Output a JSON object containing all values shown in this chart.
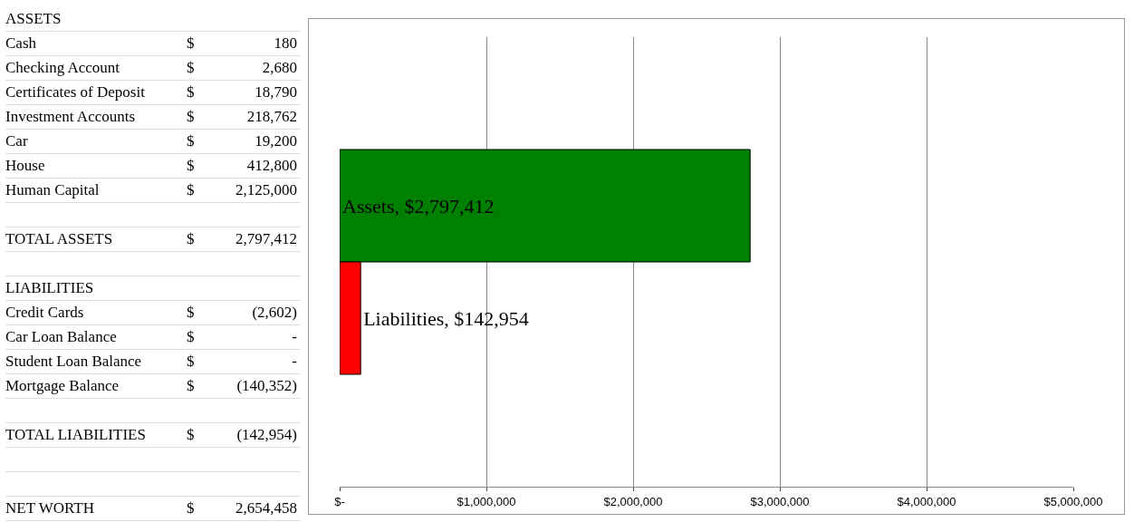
{
  "chart_data": [
    {
      "type": "other",
      "categories": [
        "ASSETS",
        "Cash",
        "Checking Account",
        "Certificates of Deposit",
        "Investment Accounts",
        "Car",
        "House",
        "Human Capital",
        null,
        "TOTAL ASSETS",
        null,
        "LIABILITIES",
        "Credit Cards",
        "Car Loan Balance",
        "Student Loan Balance",
        "Mortgage Balance",
        null,
        "TOTAL LIABILITIES",
        null,
        null,
        "NET WORTH"
      ],
      "value_labels": [
        null,
        "$ 180",
        "$ 2,680",
        "$ 18,790",
        "$ 218,762",
        "$ 19,200",
        "$ 412,800",
        "$ 2,125,000",
        null,
        "$ 2,797,412",
        null,
        null,
        "$ (2,602)",
        "$ -",
        "$ -",
        "$ (140,352)",
        null,
        "$ (142,954)",
        null,
        null,
        "$ 2,654,458"
      ]
    },
    {
      "type": "bar",
      "orientation": "horizontal",
      "categories": [
        null,
        null
      ],
      "values": [
        2797412,
        142954
      ],
      "colors": [
        "#008000",
        "#ff0000"
      ],
      "value_labels": [
        "Assets, $2,797,412",
        "Liabilities, $142,954"
      ],
      "xlim": [
        0,
        5000000
      ],
      "xticks": [
        {
          "value": 0,
          "label": "$-"
        },
        {
          "value": 1000000,
          "label": "$1,000,000"
        },
        {
          "value": 2000000,
          "label": "$2,000,000"
        },
        {
          "value": 3000000,
          "label": "$3,000,000"
        },
        {
          "value": 4000000,
          "label": "$4,000,000"
        },
        {
          "value": 5000000,
          "label": "$5,000,000"
        }
      ],
      "grid": "x",
      "tick_labels": "x"
    }
  ]
}
